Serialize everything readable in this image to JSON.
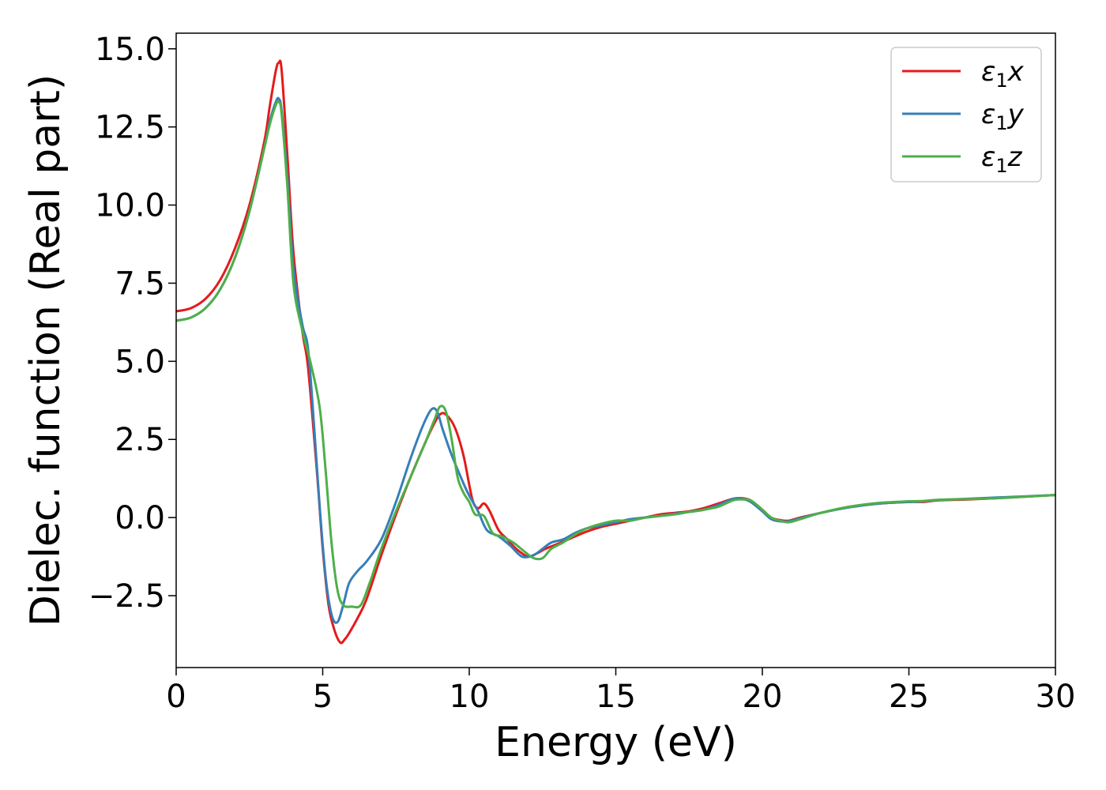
{
  "chart_data": {
    "type": "line",
    "title": "",
    "xlabel": "Energy (eV)",
    "ylabel": "Dielec. function (Real part)",
    "xlim": [
      0,
      30
    ],
    "ylim": [
      -4.8,
      15.5
    ],
    "xticks": [
      0,
      5,
      10,
      15,
      20,
      25,
      30
    ],
    "xtick_labels": [
      "0",
      "5",
      "10",
      "15",
      "20",
      "25",
      "30"
    ],
    "yticks": [
      -2.5,
      0.0,
      2.5,
      5.0,
      7.5,
      10.0,
      12.5,
      15.0
    ],
    "ytick_labels": [
      "−2.5",
      "0.0",
      "2.5",
      "5.0",
      "7.5",
      "10.0",
      "12.5",
      "15.0"
    ],
    "grid": false,
    "legend_position": "top-right",
    "series": [
      {
        "name": "ε1x",
        "label_main": "ε",
        "label_sub": "1",
        "label_suffix": "x",
        "color": "#e41a1c",
        "x": [
          0,
          0.5,
          1,
          1.5,
          2,
          2.5,
          3,
          3.2,
          3.4,
          3.5,
          3.6,
          3.8,
          4,
          4.3,
          4.5,
          4.8,
          5,
          5.2,
          5.4,
          5.6,
          5.75,
          5.9,
          6.2,
          6.5,
          7,
          7.5,
          8,
          8.5,
          8.8,
          9,
          9.2,
          9.5,
          9.8,
          10.1,
          10.3,
          10.5,
          10.7,
          11,
          11.3,
          11.6,
          12,
          12.3,
          12.6,
          13,
          13.5,
          14,
          14.5,
          15,
          15.5,
          16,
          16.5,
          17,
          17.5,
          18,
          18.5,
          19,
          19.3,
          19.6,
          20,
          20.3,
          20.6,
          20.9,
          21.3,
          22,
          23,
          24,
          25,
          25.5,
          26,
          27,
          28,
          29,
          30
        ],
        "values": [
          6.6,
          6.7,
          7.0,
          7.6,
          8.6,
          10.0,
          12.0,
          13.2,
          14.3,
          14.55,
          14.3,
          11.5,
          8.5,
          6.0,
          4.8,
          1.5,
          -1.0,
          -2.8,
          -3.6,
          -4.0,
          -3.9,
          -3.7,
          -3.2,
          -2.6,
          -1.2,
          0.1,
          1.3,
          2.4,
          3.0,
          3.3,
          3.3,
          2.9,
          2.0,
          0.6,
          0.3,
          0.45,
          0.2,
          -0.4,
          -0.7,
          -1.0,
          -1.25,
          -1.15,
          -1.0,
          -0.85,
          -0.65,
          -0.45,
          -0.3,
          -0.2,
          -0.1,
          0.0,
          0.1,
          0.15,
          0.2,
          0.3,
          0.45,
          0.6,
          0.62,
          0.55,
          0.25,
          0.0,
          -0.08,
          -0.1,
          0.0,
          0.15,
          0.35,
          0.45,
          0.5,
          0.5,
          0.55,
          0.58,
          0.62,
          0.67,
          0.72
        ]
      },
      {
        "name": "ε1y",
        "label_main": "ε",
        "label_sub": "1",
        "label_suffix": "y",
        "color": "#377eb8",
        "x": [
          0,
          0.5,
          1,
          1.5,
          2,
          2.5,
          3,
          3.2,
          3.4,
          3.5,
          3.6,
          3.8,
          4,
          4.3,
          4.5,
          4.7,
          4.9,
          5.1,
          5.3,
          5.5,
          5.7,
          5.9,
          6.2,
          6.5,
          7,
          7.5,
          8,
          8.4,
          8.7,
          8.9,
          9.1,
          9.4,
          9.8,
          10,
          10.3,
          10.6,
          11,
          11.4,
          11.8,
          12.2,
          12.5,
          12.8,
          13.2,
          13.6,
          14,
          14.5,
          15,
          15.5,
          16,
          16.5,
          17,
          17.5,
          18,
          18.5,
          19,
          19.3,
          19.6,
          20,
          20.3,
          20.6,
          20.9,
          21.3,
          22,
          23,
          24,
          25,
          25.5,
          26,
          27,
          28,
          29,
          30
        ],
        "values": [
          6.3,
          6.4,
          6.7,
          7.3,
          8.3,
          9.8,
          11.8,
          12.7,
          13.3,
          13.4,
          13.0,
          10.8,
          8.0,
          6.2,
          5.4,
          3.0,
          0.3,
          -1.9,
          -3.1,
          -3.35,
          -2.8,
          -2.1,
          -1.7,
          -1.4,
          -0.7,
          0.5,
          1.9,
          2.9,
          3.45,
          3.4,
          2.8,
          2.0,
          1.1,
          0.7,
          0.2,
          -0.4,
          -0.6,
          -0.9,
          -1.25,
          -1.2,
          -1.0,
          -0.8,
          -0.7,
          -0.5,
          -0.35,
          -0.25,
          -0.15,
          -0.05,
          0.0,
          0.05,
          0.12,
          0.18,
          0.25,
          0.4,
          0.6,
          0.6,
          0.5,
          0.2,
          -0.05,
          -0.12,
          -0.12,
          -0.02,
          0.15,
          0.33,
          0.45,
          0.5,
          0.52,
          0.56,
          0.6,
          0.64,
          0.68,
          0.72
        ]
      },
      {
        "name": "ε1z",
        "label_main": "ε",
        "label_sub": "1",
        "label_suffix": "z",
        "color": "#4daf4a",
        "x": [
          0,
          0.5,
          1,
          1.5,
          2,
          2.5,
          3,
          3.2,
          3.4,
          3.5,
          3.6,
          3.8,
          4,
          4.3,
          4.6,
          4.9,
          5.1,
          5.3,
          5.5,
          5.7,
          6.0,
          6.3,
          6.6,
          7,
          7.5,
          8,
          8.5,
          8.8,
          9.0,
          9.2,
          9.4,
          9.6,
          9.8,
          10.0,
          10.2,
          10.5,
          10.8,
          11.1,
          11.5,
          11.9,
          12.2,
          12.5,
          12.8,
          13.2,
          13.6,
          14,
          14.5,
          15,
          15.5,
          16,
          16.5,
          17,
          17.5,
          18,
          18.5,
          19,
          19.3,
          19.6,
          20,
          20.3,
          20.6,
          20.9,
          21.3,
          22,
          23,
          24,
          25,
          25.5,
          26,
          27,
          28,
          29,
          30
        ],
        "values": [
          6.3,
          6.4,
          6.7,
          7.3,
          8.3,
          9.8,
          11.8,
          12.6,
          13.2,
          13.3,
          12.9,
          10.5,
          7.5,
          6.0,
          4.9,
          3.5,
          1.5,
          -0.8,
          -2.3,
          -2.8,
          -2.85,
          -2.8,
          -2.1,
          -1.0,
          0.2,
          1.3,
          2.4,
          3.1,
          3.55,
          3.4,
          2.5,
          1.3,
          0.8,
          0.5,
          0.1,
          0.05,
          -0.5,
          -0.6,
          -0.8,
          -1.1,
          -1.3,
          -1.3,
          -1.0,
          -0.8,
          -0.55,
          -0.35,
          -0.2,
          -0.1,
          -0.1,
          0.0,
          0.05,
          0.1,
          0.18,
          0.25,
          0.35,
          0.55,
          0.58,
          0.55,
          0.25,
          0.0,
          -0.1,
          -0.15,
          -0.05,
          0.15,
          0.35,
          0.47,
          0.52,
          0.53,
          0.57,
          0.59,
          0.62,
          0.67,
          0.72
        ]
      }
    ]
  }
}
